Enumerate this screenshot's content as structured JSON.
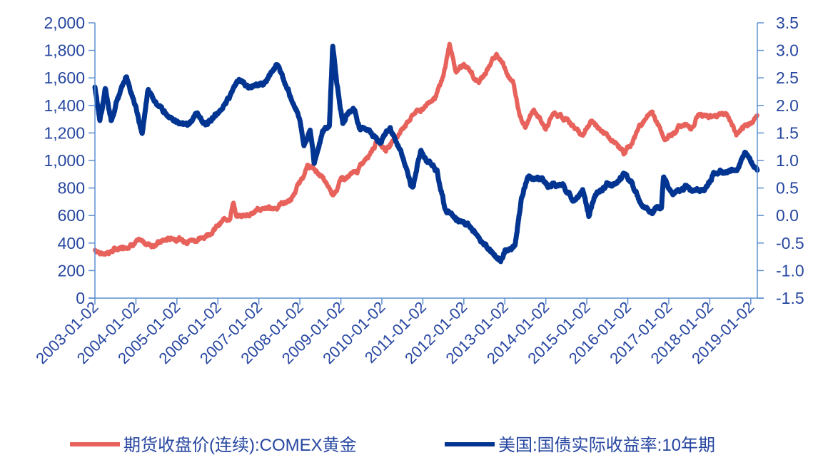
{
  "chart_data": {
    "type": "line",
    "title": "",
    "x_range": [
      2003.0,
      2019.16
    ],
    "x_tick_labels": [
      "2003-01-02",
      "2004-01-02",
      "2005-01-02",
      "2006-01-02",
      "2007-01-02",
      "2008-01-02",
      "2009-01-02",
      "2010-01-02",
      "2011-01-02",
      "2012-01-02",
      "2013-01-02",
      "2014-01-02",
      "2015-01-02",
      "2016-01-02",
      "2017-01-02",
      "2018-01-02",
      "2019-01-02"
    ],
    "y_left": {
      "range": [
        0,
        2000
      ],
      "ticks": [
        "0",
        "200",
        "400",
        "600",
        "800",
        "1,000",
        "1,200",
        "1,400",
        "1,600",
        "1,800",
        "2,000"
      ],
      "tick_values": [
        0,
        200,
        400,
        600,
        800,
        1000,
        1200,
        1400,
        1600,
        1800,
        2000
      ]
    },
    "y_right": {
      "range": [
        -1.5,
        3.5
      ],
      "ticks": [
        "-1.5",
        "-1.0",
        "-0.5",
        "0.0",
        "0.5",
        "1.0",
        "1.5",
        "2.0",
        "2.5",
        "3.0",
        "3.5"
      ],
      "tick_values": [
        -1.5,
        -1,
        -0.5,
        0,
        0.5,
        1,
        1.5,
        2,
        2.5,
        3,
        3.5
      ]
    },
    "grid": false,
    "legend_position": "bottom",
    "series": [
      {
        "name": "期货收盘价(连续):COMEX黄金",
        "axis": "left",
        "color": "#e8625c",
        "points": [
          [
            2003.0,
            350
          ],
          [
            2003.2,
            325
          ],
          [
            2003.6,
            360
          ],
          [
            2004.0,
            410
          ],
          [
            2004.4,
            390
          ],
          [
            2004.9,
            440
          ],
          [
            2005.2,
            420
          ],
          [
            2005.6,
            430
          ],
          [
            2005.9,
            500
          ],
          [
            2006.3,
            600
          ],
          [
            2006.38,
            710
          ],
          [
            2006.45,
            580
          ],
          [
            2006.8,
            620
          ],
          [
            2007.0,
            640
          ],
          [
            2007.4,
            660
          ],
          [
            2007.8,
            720
          ],
          [
            2008.2,
            960
          ],
          [
            2008.5,
            900
          ],
          [
            2008.8,
            750
          ],
          [
            2009.0,
            860
          ],
          [
            2009.4,
            920
          ],
          [
            2009.9,
            1150
          ],
          [
            2010.1,
            1080
          ],
          [
            2010.5,
            1230
          ],
          [
            2010.8,
            1350
          ],
          [
            2011.0,
            1380
          ],
          [
            2011.3,
            1470
          ],
          [
            2011.5,
            1600
          ],
          [
            2011.65,
            1850
          ],
          [
            2011.8,
            1650
          ],
          [
            2012.0,
            1700
          ],
          [
            2012.35,
            1560
          ],
          [
            2012.7,
            1720
          ],
          [
            2012.8,
            1780
          ],
          [
            2013.0,
            1680
          ],
          [
            2013.2,
            1560
          ],
          [
            2013.35,
            1350
          ],
          [
            2013.5,
            1250
          ],
          [
            2013.7,
            1380
          ],
          [
            2014.0,
            1230
          ],
          [
            2014.2,
            1340
          ],
          [
            2014.5,
            1300
          ],
          [
            2014.9,
            1180
          ],
          [
            2015.1,
            1280
          ],
          [
            2015.5,
            1180
          ],
          [
            2015.9,
            1060
          ],
          [
            2016.1,
            1120
          ],
          [
            2016.3,
            1260
          ],
          [
            2016.6,
            1350
          ],
          [
            2016.9,
            1150
          ],
          [
            2017.0,
            1170
          ],
          [
            2017.3,
            1260
          ],
          [
            2017.6,
            1250
          ],
          [
            2017.7,
            1320
          ],
          [
            2018.0,
            1330
          ],
          [
            2018.4,
            1340
          ],
          [
            2018.65,
            1190
          ],
          [
            2018.9,
            1240
          ],
          [
            2019.16,
            1330
          ]
        ]
      },
      {
        "name": "美国:国债实际收益率:10年期",
        "axis": "right",
        "color": "#023591",
        "points": [
          [
            2003.0,
            2.35
          ],
          [
            2003.12,
            1.75
          ],
          [
            2003.25,
            2.3
          ],
          [
            2003.4,
            1.7
          ],
          [
            2003.55,
            2.1
          ],
          [
            2003.75,
            2.5
          ],
          [
            2003.95,
            2.15
          ],
          [
            2004.15,
            1.5
          ],
          [
            2004.3,
            2.3
          ],
          [
            2004.5,
            2.0
          ],
          [
            2004.75,
            1.85
          ],
          [
            2005.0,
            1.7
          ],
          [
            2005.3,
            1.65
          ],
          [
            2005.5,
            1.85
          ],
          [
            2005.7,
            1.65
          ],
          [
            2006.0,
            1.85
          ],
          [
            2006.3,
            2.2
          ],
          [
            2006.5,
            2.5
          ],
          [
            2006.8,
            2.3
          ],
          [
            2007.2,
            2.45
          ],
          [
            2007.45,
            2.75
          ],
          [
            2007.7,
            2.3
          ],
          [
            2008.0,
            1.75
          ],
          [
            2008.1,
            1.3
          ],
          [
            2008.25,
            1.6
          ],
          [
            2008.35,
            0.95
          ],
          [
            2008.55,
            1.5
          ],
          [
            2008.72,
            1.6
          ],
          [
            2008.8,
            3.1
          ],
          [
            2008.9,
            2.4
          ],
          [
            2009.05,
            1.7
          ],
          [
            2009.3,
            1.95
          ],
          [
            2009.45,
            1.6
          ],
          [
            2009.7,
            1.55
          ],
          [
            2009.95,
            1.35
          ],
          [
            2010.2,
            1.6
          ],
          [
            2010.45,
            1.2
          ],
          [
            2010.75,
            0.5
          ],
          [
            2010.95,
            1.2
          ],
          [
            2011.1,
            0.95
          ],
          [
            2011.35,
            0.8
          ],
          [
            2011.55,
            0.1
          ],
          [
            2011.8,
            -0.05
          ],
          [
            2012.1,
            -0.15
          ],
          [
            2012.4,
            -0.45
          ],
          [
            2012.7,
            -0.7
          ],
          [
            2012.9,
            -0.8
          ],
          [
            2013.0,
            -0.65
          ],
          [
            2013.25,
            -0.55
          ],
          [
            2013.4,
            0.3
          ],
          [
            2013.55,
            0.7
          ],
          [
            2013.8,
            0.7
          ],
          [
            2014.1,
            0.55
          ],
          [
            2014.4,
            0.55
          ],
          [
            2014.65,
            0.3
          ],
          [
            2014.9,
            0.45
          ],
          [
            2015.05,
            0.0
          ],
          [
            2015.2,
            0.35
          ],
          [
            2015.5,
            0.55
          ],
          [
            2015.75,
            0.6
          ],
          [
            2015.95,
            0.75
          ],
          [
            2016.1,
            0.6
          ],
          [
            2016.35,
            0.15
          ],
          [
            2016.6,
            0.05
          ],
          [
            2016.82,
            0.15
          ],
          [
            2016.87,
            0.65
          ],
          [
            2017.1,
            0.4
          ],
          [
            2017.4,
            0.5
          ],
          [
            2017.7,
            0.45
          ],
          [
            2017.95,
            0.55
          ],
          [
            2018.1,
            0.75
          ],
          [
            2018.4,
            0.8
          ],
          [
            2018.7,
            0.85
          ],
          [
            2018.85,
            1.15
          ],
          [
            2019.0,
            1.0
          ],
          [
            2019.16,
            0.8
          ]
        ]
      }
    ]
  }
}
